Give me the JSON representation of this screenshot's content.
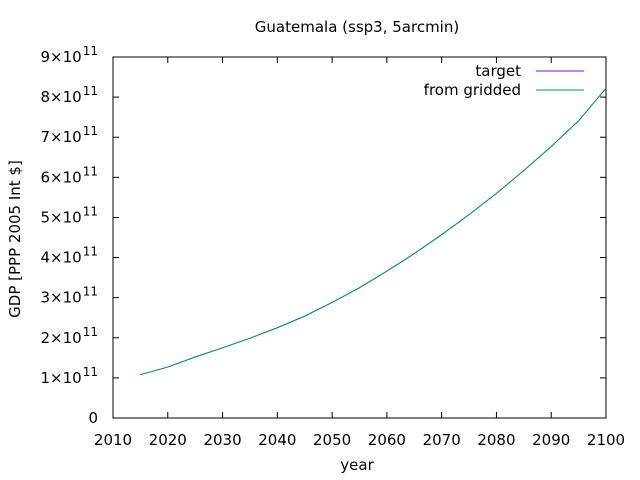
{
  "chart_data": {
    "type": "line",
    "title": "Guatemala (ssp3, 5arcmin)",
    "xlabel": "year",
    "ylabel": "GDP [PPP 2005 Int $]",
    "xlim": [
      2010,
      2100
    ],
    "ylim": [
      0,
      900000000000
    ],
    "xticks": [
      {
        "value": 2010,
        "label": "2010"
      },
      {
        "value": 2020,
        "label": "2020"
      },
      {
        "value": 2030,
        "label": "2030"
      },
      {
        "value": 2040,
        "label": "2040"
      },
      {
        "value": 2050,
        "label": "2050"
      },
      {
        "value": 2060,
        "label": "2060"
      },
      {
        "value": 2070,
        "label": "2070"
      },
      {
        "value": 2080,
        "label": "2080"
      },
      {
        "value": 2090,
        "label": "2090"
      },
      {
        "value": 2100,
        "label": "2100"
      }
    ],
    "yticks": [
      {
        "value": 0,
        "mantissa": "0",
        "exponent": ""
      },
      {
        "value": 100000000000,
        "mantissa": "1×10",
        "exponent": "11"
      },
      {
        "value": 200000000000,
        "mantissa": "2×10",
        "exponent": "11"
      },
      {
        "value": 300000000000,
        "mantissa": "3×10",
        "exponent": "11"
      },
      {
        "value": 400000000000,
        "mantissa": "4×10",
        "exponent": "11"
      },
      {
        "value": 500000000000,
        "mantissa": "5×10",
        "exponent": "11"
      },
      {
        "value": 600000000000,
        "mantissa": "6×10",
        "exponent": "11"
      },
      {
        "value": 700000000000,
        "mantissa": "7×10",
        "exponent": "11"
      },
      {
        "value": 800000000000,
        "mantissa": "8×10",
        "exponent": "11"
      },
      {
        "value": 900000000000,
        "mantissa": "9×10",
        "exponent": "11"
      }
    ],
    "grid": false,
    "legend_position": "top-right",
    "series": [
      {
        "name": "target",
        "color": "#9400d3",
        "x": [
          2015,
          2020,
          2025,
          2030,
          2035,
          2040,
          2045,
          2050,
          2055,
          2060,
          2065,
          2070,
          2075,
          2080,
          2085,
          2090,
          2095,
          2100
        ],
        "y": [
          108000000000,
          127000000000,
          152000000000,
          175000000000,
          199000000000,
          225000000000,
          254000000000,
          288000000000,
          325000000000,
          366000000000,
          410000000000,
          457000000000,
          507000000000,
          560000000000,
          617000000000,
          677000000000,
          741000000000,
          822000000000
        ]
      },
      {
        "name": "from gridded",
        "color": "#009e73",
        "x": [
          2015,
          2020,
          2025,
          2030,
          2035,
          2040,
          2045,
          2050,
          2055,
          2060,
          2065,
          2070,
          2075,
          2080,
          2085,
          2090,
          2095,
          2100
        ],
        "y": [
          108000000000,
          127000000000,
          152000000000,
          175000000000,
          199000000000,
          225000000000,
          254000000000,
          288000000000,
          325000000000,
          366000000000,
          410000000000,
          457000000000,
          507000000000,
          560000000000,
          617000000000,
          677000000000,
          741000000000,
          822000000000
        ]
      }
    ]
  }
}
